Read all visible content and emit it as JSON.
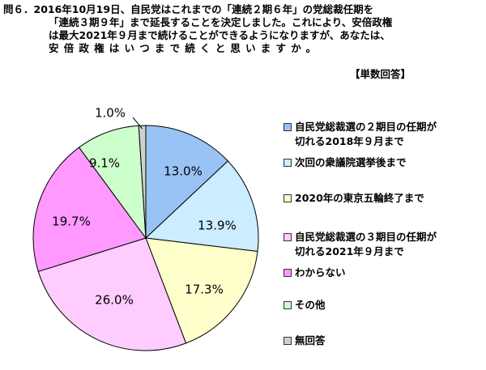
{
  "question": {
    "lines": [
      "問６．2016年10月19日、自民党はこれまでの「連続２期６年」の党総裁任期を",
      "「連続３期９年」まで延長することを決定しました。これにより、安倍政権",
      "は最大2021年９月まで続けることができるようになりますが、あなたは、",
      "安倍政権はいつまで続くと思いますか。"
    ],
    "note": "【単数回答】"
  },
  "chart_data": {
    "type": "pie",
    "title": "",
    "start_angle_deg": -90,
    "direction": "clockwise",
    "slices": [
      {
        "label": "自民党総裁選の２期目の任期が切れる2018年９月まで",
        "value": 13.0,
        "display": "13.0%",
        "color": "#99c2f5"
      },
      {
        "label": "次回の衆議院選挙後まで",
        "value": 13.9,
        "display": "13.9%",
        "color": "#ccecff"
      },
      {
        "label": "2020年の東京五輪終了まで",
        "value": 17.3,
        "display": "17.3%",
        "color": "#ffffcc"
      },
      {
        "label": "自民党総裁選の３期目の任期が切れる2021年９月まで",
        "value": 26.0,
        "display": "26.0%",
        "color": "#ffccff"
      },
      {
        "label": "わからない",
        "value": 19.7,
        "display": "19.7%",
        "color": "#ff99ff"
      },
      {
        "label": "その他",
        "value": 9.1,
        "display": "9.1%",
        "color": "#ccffcc"
      },
      {
        "label": "無回答",
        "value": 1.0,
        "display": "1.0%",
        "color": "#d0d0d0"
      }
    ],
    "legend": {
      "placement": "right",
      "items": [
        {
          "lines": [
            "自民党総裁選の２期目の任期が",
            "切れる2018年９月まで"
          ],
          "color": "#99c2f5"
        },
        {
          "lines": [
            "次回の衆議院選挙後まで"
          ],
          "color": "#ccecff"
        },
        {
          "lines": [
            "2020年の東京五輪終了まで"
          ],
          "color": "#ffffcc"
        },
        {
          "lines": [
            "自民党総裁選の３期目の任期が",
            "切れる2021年９月まで"
          ],
          "color": "#ffccff"
        },
        {
          "lines": [
            "わからない"
          ],
          "color": "#ff99ff"
        },
        {
          "lines": [
            "その他"
          ],
          "color": "#ccffcc"
        },
        {
          "lines": [
            "無回答"
          ],
          "color": "#d0d0d0"
        }
      ]
    }
  }
}
